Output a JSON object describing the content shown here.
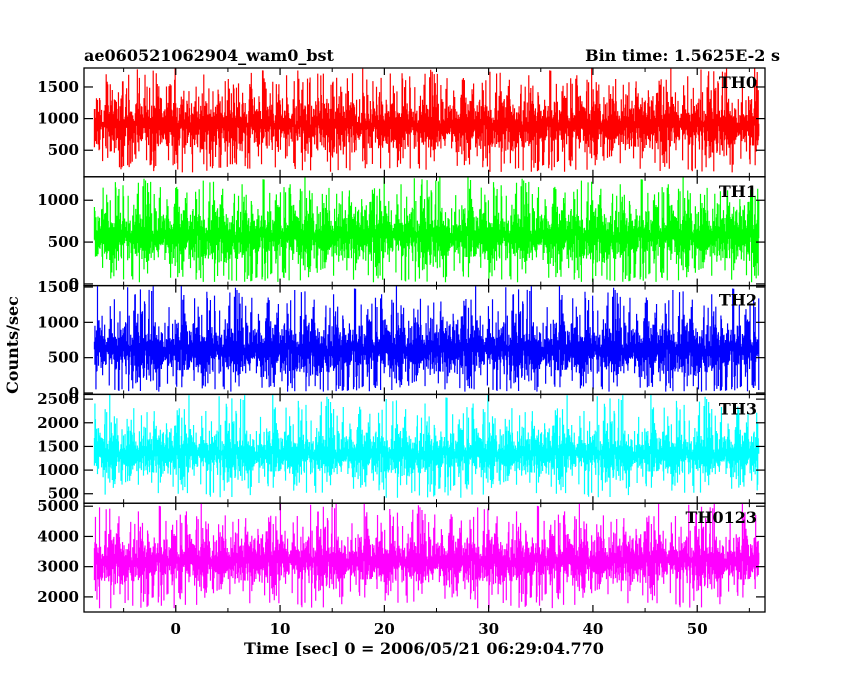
{
  "header": {
    "title": "ae060521062904_wam0_bst",
    "bin_time": "Bin time: 1.5625E-2 s"
  },
  "chart_data": {
    "type": "line",
    "title": "ae060521062904_wam0_bst",
    "subtitle": "Bin time: 1.5625E-2 s",
    "xlabel": "Time [sec] 0 = 2006/05/21 06:29:04.770",
    "ylabel": "Counts/sec",
    "xlim": [
      -8.8,
      56.5
    ],
    "data_x_range": [
      -7.8,
      55.9
    ],
    "bin_time": 0.015625,
    "xticks": [
      0,
      10,
      20,
      30,
      40,
      50
    ],
    "grid": false,
    "panels": [
      {
        "name": "TH0",
        "color": "#ff0000",
        "ylim": [
          80,
          1800
        ],
        "yticks": [
          500,
          1000,
          1500
        ],
        "mean": 900,
        "typical_low": 300,
        "typical_high": 1500,
        "min": 150,
        "max": 1800
      },
      {
        "name": "TH1",
        "color": "#00ff00",
        "ylim": [
          -20,
          1280
        ],
        "yticks": [
          0,
          500,
          1000
        ],
        "mean": 580,
        "typical_low": 100,
        "typical_high": 1050,
        "min": 20,
        "max": 1280
      },
      {
        "name": "TH2",
        "color": "#0000ff",
        "ylim": [
          -20,
          1520
        ],
        "yticks": [
          0,
          500,
          1000,
          1500
        ],
        "mean": 620,
        "typical_low": 100,
        "typical_high": 1200,
        "min": 20,
        "max": 1520
      },
      {
        "name": "TH3",
        "color": "#00ffff",
        "ylim": [
          300,
          2600
        ],
        "yticks": [
          500,
          1000,
          1500,
          2000,
          2500
        ],
        "mean": 1350,
        "typical_low": 700,
        "typical_high": 2100,
        "min": 400,
        "max": 2600
      },
      {
        "name": "TH0123",
        "color": "#ff00ff",
        "ylim": [
          1500,
          5100
        ],
        "yticks": [
          2000,
          3000,
          4000,
          5000
        ],
        "mean": 3200,
        "typical_low": 2100,
        "typical_high": 4400,
        "min": 1600,
        "max": 5100
      }
    ]
  }
}
